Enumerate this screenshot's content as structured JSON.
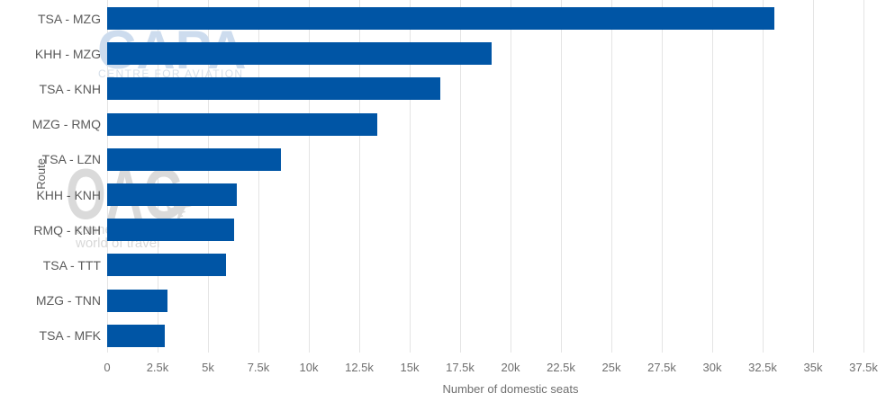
{
  "chart_data": {
    "type": "bar",
    "orientation": "horizontal",
    "title": "",
    "xlabel": "Number of domestic seats",
    "ylabel": "Route",
    "categories": [
      "TSA - MZG",
      "KHH - MZG",
      "TSA - KNH",
      "MZG - RMQ",
      "TSA - LZN",
      "KHH - KNH",
      "RMQ - KNH",
      "TSA - TTT",
      "MZG - TNN",
      "TSA - MFK"
    ],
    "values": [
      33100,
      19050,
      16500,
      13400,
      8600,
      6450,
      6300,
      5900,
      3000,
      2850
    ],
    "xlim": [
      0,
      37500
    ],
    "xtick_step": 2500,
    "xtick_labels": [
      "0",
      "2.5k",
      "5k",
      "7.5k",
      "10k",
      "12.5k",
      "15k",
      "17.5k",
      "20k",
      "22.5k",
      "25k",
      "27.5k",
      "30k",
      "32.5k",
      "35k",
      "37.5k"
    ],
    "grid": true,
    "legend": "none",
    "bar_color": "#0055a5",
    "gridline_color": "#e4e4e4",
    "category_label_color": "#5a5a5a",
    "tick_label_color": "#6f6f6f"
  },
  "watermarks": {
    "capa": {
      "title": "CAPA",
      "subtitle": "CENTRE FOR AVIATION",
      "title_color": "#cddcee",
      "subtitle_color": "#d6dfe9"
    },
    "oag": {
      "title": "OAG",
      "plane_icon": "plane-icon",
      "tagline_line1": "connecting the",
      "tagline_line2": "world of travel",
      "color": "#dadada",
      "tagline_color": "#d8d8d8"
    }
  }
}
